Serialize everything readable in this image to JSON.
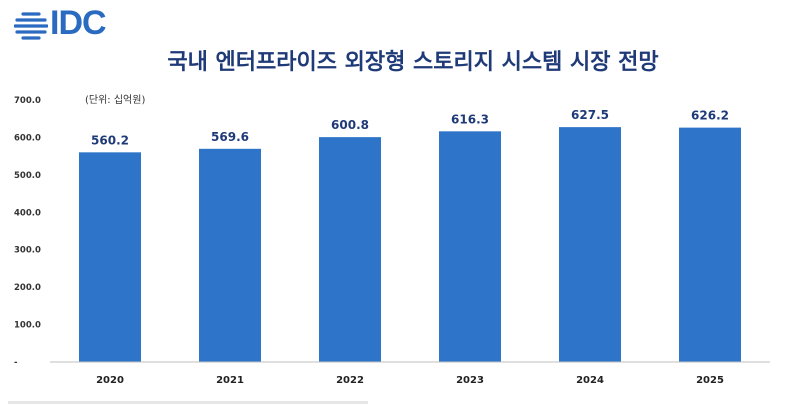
{
  "logo": {
    "text": "IDC",
    "color": "#2a6bc1"
  },
  "chart_data": {
    "type": "bar",
    "title": "국내 엔터프라이즈 외장형 스토리지 시스템 시장 전망",
    "unit_note": "(단위: 십억원)",
    "categories": [
      "2020",
      "2021",
      "2022",
      "2023",
      "2024",
      "2025"
    ],
    "values": [
      560.2,
      569.6,
      600.8,
      616.3,
      627.5,
      626.2
    ],
    "value_labels": [
      "560.2",
      "569.6",
      "600.8",
      "616.3",
      "627.5",
      "626.2"
    ],
    "y_ticks": [
      "700.0",
      "600.0",
      "500.0",
      "400.0",
      "300.0",
      "200.0",
      "100.0",
      "-"
    ],
    "y_tick_values": [
      700,
      600,
      500,
      400,
      300,
      200,
      100,
      0
    ],
    "ylim": [
      0,
      700
    ],
    "bar_color": "#2e75c9",
    "grid": false,
    "xlabel": "",
    "ylabel": ""
  }
}
